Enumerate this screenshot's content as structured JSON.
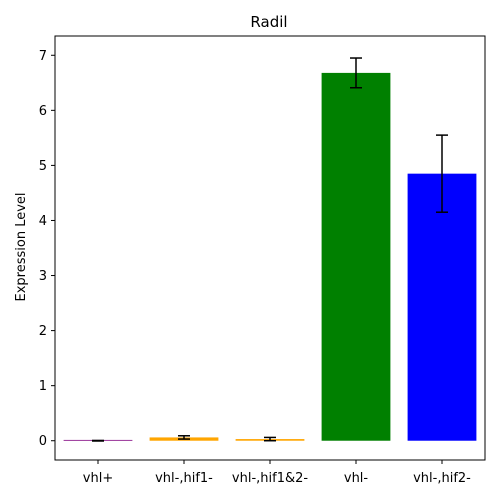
{
  "chart_data": {
    "type": "bar",
    "title": "Radil",
    "xlabel": "",
    "ylabel": "Expression Level",
    "categories": [
      "vhl+",
      "vhl-,hif1-",
      "vhl-,hif1&2-",
      "vhl-",
      "vhl-,hif2-"
    ],
    "values": [
      0.0,
      0.06,
      0.03,
      6.68,
      4.85
    ],
    "errors": [
      0.005,
      0.03,
      0.03,
      0.27,
      0.7
    ],
    "colors": [
      "#800080",
      "#ffa500",
      "#ffa500",
      "#008000",
      "#0000ff"
    ],
    "ylim": [
      -0.35,
      7.35
    ],
    "yticks": [
      0,
      1,
      2,
      3,
      4,
      5,
      6,
      7
    ],
    "grid": false,
    "legend": "none"
  }
}
